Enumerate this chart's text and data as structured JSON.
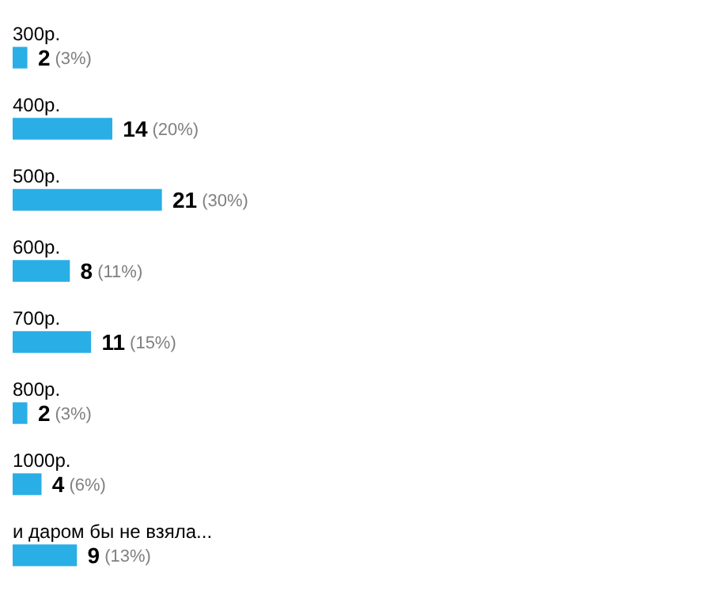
{
  "chart_data": {
    "type": "bar",
    "orientation": "horizontal",
    "categories": [
      "300р.",
      "400р.",
      "500р.",
      "600р.",
      "700р.",
      "800р.",
      "1000р.",
      "и даром бы не взяла..."
    ],
    "values": [
      2,
      14,
      21,
      8,
      11,
      2,
      4,
      9
    ],
    "value_labels": [
      "2 (3%)",
      "14 (20%)",
      "21 (30%)",
      "8 (11%)",
      "11 (15%)",
      "2 (3%)",
      "4 (6%)",
      "9 (13%)"
    ],
    "color": "#29aee6"
  }
}
